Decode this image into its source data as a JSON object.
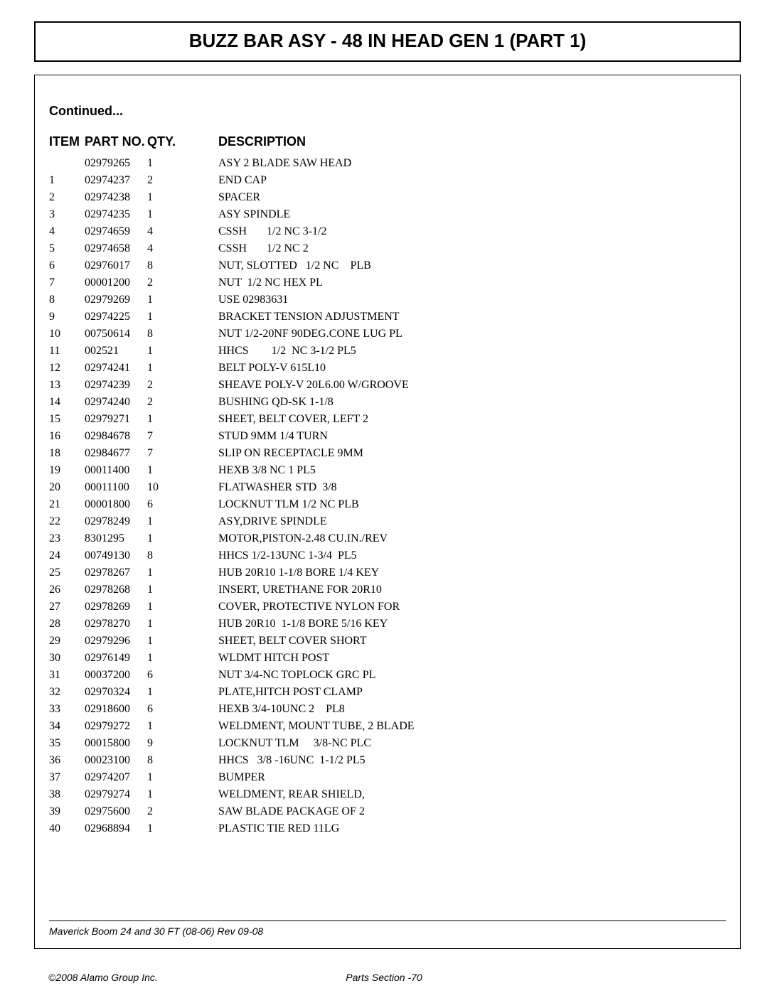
{
  "page": {
    "title": "BUZZ BAR ASY - 48 IN HEAD GEN 1 (PART 1)",
    "continued": "Continued...",
    "footer_doc": "Maverick Boom 24 and 30 FT (08-06) Rev 09-08",
    "copyright": "©2008 Alamo Group Inc.",
    "section": "Parts Section -70"
  },
  "table": {
    "columns": [
      "ITEM",
      "PART NO.",
      "QTY.",
      "DESCRIPTION"
    ],
    "rows": [
      {
        "item": "",
        "part": "02979265",
        "qty": "1",
        "desc": "ASY 2 BLADE SAW HEAD"
      },
      {
        "item": "1",
        "part": "02974237",
        "qty": "2",
        "desc": "END CAP"
      },
      {
        "item": "2",
        "part": "02974238",
        "qty": "1",
        "desc": "SPACER"
      },
      {
        "item": "3",
        "part": "02974235",
        "qty": "1",
        "desc": "ASY SPINDLE"
      },
      {
        "item": "4",
        "part": "02974659",
        "qty": "4",
        "desc": "CSSH       1/2 NC 3-1/2"
      },
      {
        "item": "5",
        "part": "02974658",
        "qty": "4",
        "desc": "CSSH       1/2 NC 2"
      },
      {
        "item": "6",
        "part": "02976017",
        "qty": "8",
        "desc": "NUT, SLOTTED   1/2 NC    PLB"
      },
      {
        "item": "7",
        "part": "00001200",
        "qty": "2",
        "desc": "NUT  1/2 NC HEX PL"
      },
      {
        "item": "8",
        "part": "02979269",
        "qty": "1",
        "desc": "USE 02983631"
      },
      {
        "item": "9",
        "part": "02974225",
        "qty": "1",
        "desc": "BRACKET TENSION ADJUSTMENT"
      },
      {
        "item": "10",
        "part": "00750614",
        "qty": "8",
        "desc": "NUT 1/2-20NF 90DEG.CONE LUG PL"
      },
      {
        "item": "11",
        "part": "002521",
        "qty": "1",
        "desc": "HHCS        1/2  NC 3-1/2 PL5"
      },
      {
        "item": "12",
        "part": "02974241",
        "qty": "1",
        "desc": "BELT POLY-V 615L10"
      },
      {
        "item": "13",
        "part": "02974239",
        "qty": "2",
        "desc": "SHEAVE POLY-V 20L6.00 W/GROOVE"
      },
      {
        "item": "14",
        "part": "02974240",
        "qty": "2",
        "desc": "BUSHING QD-SK 1-1/8"
      },
      {
        "item": "15",
        "part": "02979271",
        "qty": "1",
        "desc": "SHEET, BELT COVER, LEFT 2"
      },
      {
        "item": "16",
        "part": "02984678",
        "qty": "7",
        "desc": "STUD 9MM 1/4 TURN"
      },
      {
        "item": "18",
        "part": "02984677",
        "qty": "7",
        "desc": "SLIP ON RECEPTACLE 9MM"
      },
      {
        "item": "19",
        "part": "00011400",
        "qty": "1",
        "desc": "HEXB 3/8 NC 1 PL5"
      },
      {
        "item": "20",
        "part": "00011100",
        "qty": "10",
        "desc": "FLATWASHER STD  3/8"
      },
      {
        "item": "21",
        "part": "00001800",
        "qty": "6",
        "desc": "LOCKNUT TLM 1/2 NC PLB"
      },
      {
        "item": "22",
        "part": "02978249",
        "qty": "1",
        "desc": "ASY,DRIVE SPINDLE"
      },
      {
        "item": "23",
        "part": "8301295",
        "qty": "1",
        "desc": "MOTOR,PISTON-2.48 CU.IN./REV"
      },
      {
        "item": "24",
        "part": "00749130",
        "qty": "8",
        "desc": "HHCS 1/2-13UNC 1-3/4  PL5"
      },
      {
        "item": "25",
        "part": "02978267",
        "qty": "1",
        "desc": "HUB 20R10 1-1/8 BORE 1/4 KEY"
      },
      {
        "item": "26",
        "part": "02978268",
        "qty": "1",
        "desc": "INSERT, URETHANE FOR 20R10"
      },
      {
        "item": "27",
        "part": "02978269",
        "qty": "1",
        "desc": "COVER, PROTECTIVE NYLON FOR"
      },
      {
        "item": "28",
        "part": "02978270",
        "qty": "1",
        "desc": "HUB 20R10  1-1/8 BORE 5/16 KEY"
      },
      {
        "item": "29",
        "part": "02979296",
        "qty": "1",
        "desc": "SHEET, BELT COVER SHORT"
      },
      {
        "item": "30",
        "part": "02976149",
        "qty": "1",
        "desc": "WLDMT HITCH POST"
      },
      {
        "item": "31",
        "part": "00037200",
        "qty": "6",
        "desc": "NUT 3/4-NC TOPLOCK GRC PL"
      },
      {
        "item": "32",
        "part": "02970324",
        "qty": "1",
        "desc": "PLATE,HITCH POST CLAMP"
      },
      {
        "item": "33",
        "part": "02918600",
        "qty": "6",
        "desc": "HEXB 3/4-10UNC 2    PL8"
      },
      {
        "item": "34",
        "part": "02979272",
        "qty": "1",
        "desc": "WELDMENT, MOUNT TUBE, 2 BLADE"
      },
      {
        "item": "35",
        "part": "00015800",
        "qty": "9",
        "desc": "LOCKNUT TLM     3/8-NC PLC"
      },
      {
        "item": "36",
        "part": "00023100",
        "qty": "8",
        "desc": "HHCS   3/8 -16UNC  1-1/2 PL5"
      },
      {
        "item": "37",
        "part": "02974207",
        "qty": "1",
        "desc": "BUMPER"
      },
      {
        "item": "38",
        "part": "02979274",
        "qty": "1",
        "desc": "WELDMENT, REAR SHIELD,"
      },
      {
        "item": "39",
        "part": "02975600",
        "qty": "2",
        "desc": "SAW BLADE PACKAGE OF 2"
      },
      {
        "item": "40",
        "part": "02968894",
        "qty": "1",
        "desc": "PLASTIC TIE RED 11LG"
      }
    ]
  }
}
